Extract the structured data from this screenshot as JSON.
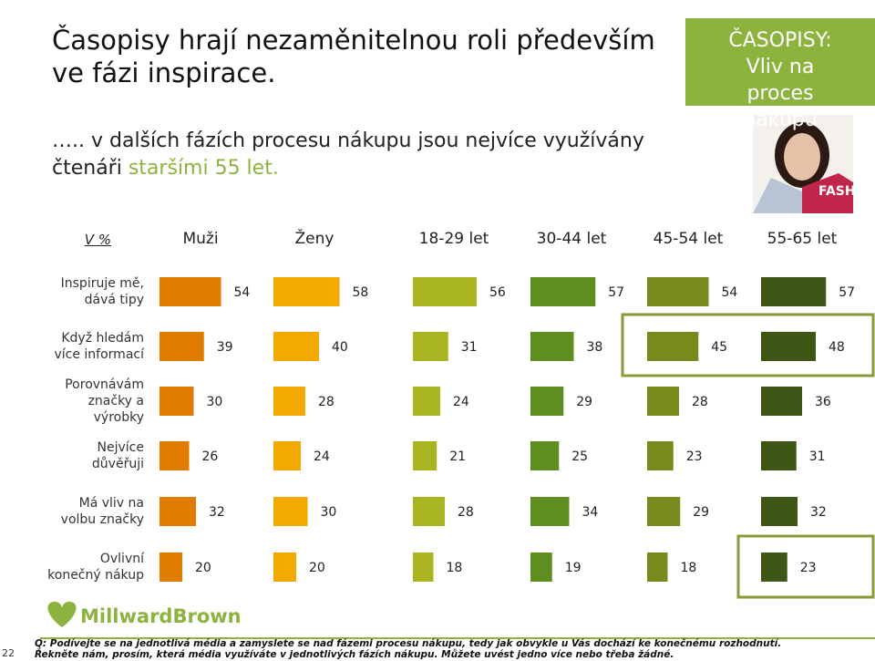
{
  "title": "Časopisy hrají nezaměnitelnou roli především ve fázi inspirace.",
  "subtitle": [
    "….. v dalších fázích procesu nákupu jsou nejvíce využívány čtenáři ",
    "staršími 55 let."
  ],
  "badge": [
    "ČASOPISY:",
    "Vliv na proces nákupu"
  ],
  "logo": "MillwardBrown",
  "footnote": [
    "Q: Podívejte se na jednotlivá média a zamyslete se nad fázemi procesu nákupu, tedy jak obvykle u Vás dochází ke konečnému rozhodnutí.",
    "Řekněte nám, prosím, která média využíváte v jednotlivých fázích nákupu. Můžete uvést jedno více nebo třeba žádné."
  ],
  "page_number": "22",
  "chart_data": {
    "type": "bar",
    "corner_label": "V %",
    "categories": [
      "Inspiruje mě,\ndává tipy",
      "Když hledám\nvíce informací",
      "Porovnávám\nznačky a\nvýrobky",
      "Nejvíce\ndůvěřuji",
      "Má vliv na\nvolbu značky",
      "Ovlivní\nkonečný nákup"
    ],
    "series": [
      {
        "name": "Muži",
        "color": "#e07b00",
        "values": [
          54,
          39,
          30,
          26,
          32,
          20
        ]
      },
      {
        "name": "Ženy",
        "color": "#f2a900",
        "values": [
          58,
          40,
          28,
          24,
          30,
          20
        ]
      },
      {
        "name": "18-29 let",
        "color": "#a9b421",
        "values": [
          56,
          31,
          24,
          21,
          28,
          18
        ]
      },
      {
        "name": "30-44 let",
        "color": "#5f8d1f",
        "values": [
          57,
          38,
          29,
          25,
          34,
          19
        ]
      },
      {
        "name": "45-54 let",
        "color": "#788a1b",
        "values": [
          54,
          45,
          28,
          23,
          29,
          18
        ]
      },
      {
        "name": "55-65 let",
        "color": "#3e5716",
        "values": [
          57,
          48,
          36,
          31,
          32,
          23
        ]
      }
    ]
  }
}
